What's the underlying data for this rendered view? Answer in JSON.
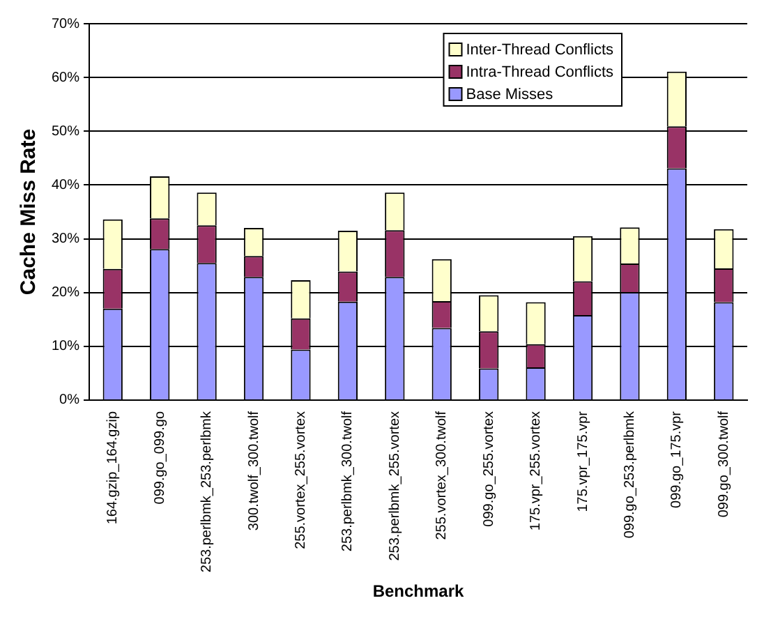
{
  "chart_data": {
    "type": "bar",
    "stacked": true,
    "xlabel": "Benchmark",
    "ylabel": "Cache Miss Rate",
    "categories": [
      "164.gzip_164.gzip",
      "099.go_099.go",
      "253.perlbmk_253.perlbmk",
      "300.twolf_300.twolf",
      "255.vortex_255.vortex",
      "253.perlbmk_300.twolf",
      "253.perlbmk_255.vortex",
      "255.vortex_300.twolf",
      "099.go_255.vortex",
      "175.vpr_255.vortex",
      "175.vpr_175.vpr",
      "099.go_253.perlbmk",
      "099.go_175.vpr",
      "099.go_300.twolf"
    ],
    "series": [
      {
        "name": "Base Misses",
        "color": "#9999ff",
        "values": [
          17,
          28.1,
          25.5,
          22.9,
          9.4,
          18.3,
          22.9,
          13.4,
          5.9,
          6.1,
          15.8,
          20.1,
          43.1,
          18.2
        ]
      },
      {
        "name": "Intra-Thread Conflicts",
        "color": "#993366",
        "values": [
          7.4,
          5.7,
          7.0,
          3.9,
          5.8,
          5.6,
          8.7,
          5.0,
          6.9,
          4.3,
          6.3,
          5.3,
          7.8,
          6.3
        ]
      },
      {
        "name": "Inter-Thread Conflicts",
        "color": "#ffffcc",
        "values": [
          9.2,
          7.8,
          6.1,
          5.2,
          7.1,
          7.6,
          7.0,
          7.8,
          6.7,
          7.8,
          8.4,
          6.7,
          10.2,
          7.3
        ]
      }
    ],
    "ylim": [
      0,
      70
    ],
    "yticks": [
      {
        "value": 0,
        "label": "0%"
      },
      {
        "value": 10,
        "label": "10%"
      },
      {
        "value": 20,
        "label": "20%"
      },
      {
        "value": 30,
        "label": "30%"
      },
      {
        "value": 40,
        "label": "40%"
      },
      {
        "value": 50,
        "label": "50%"
      },
      {
        "value": 60,
        "label": "60%"
      },
      {
        "value": 70,
        "label": "70%"
      }
    ],
    "grid": "y",
    "legend": "top right"
  }
}
